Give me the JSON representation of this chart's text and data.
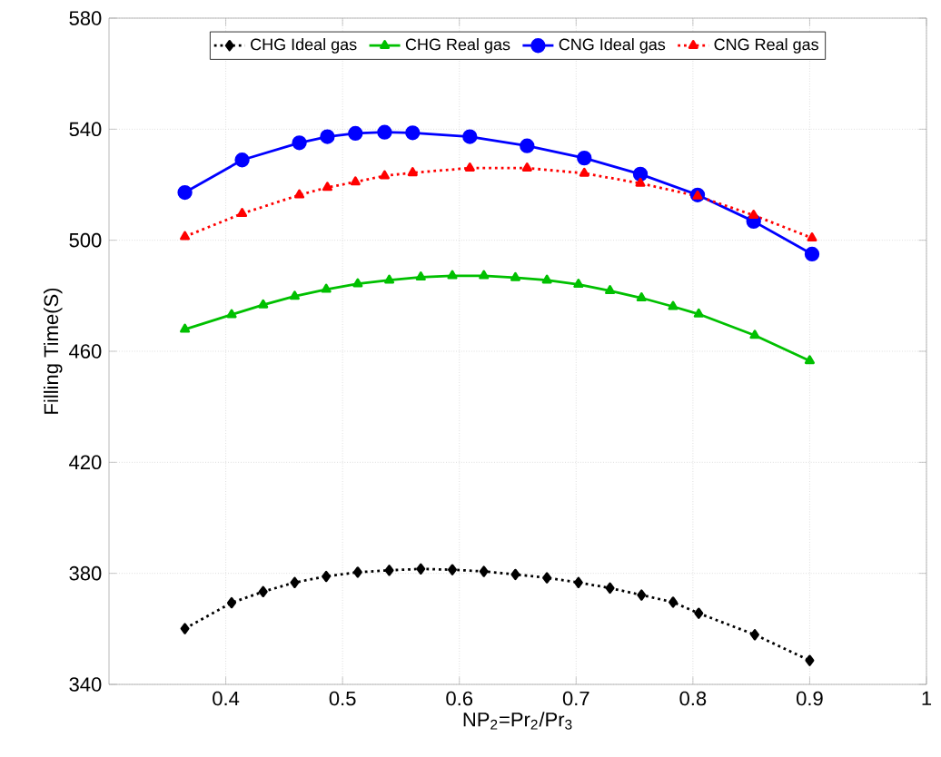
{
  "chart_data": {
    "type": "line",
    "xlabel": "NP$_{2}$=Pr$_{2}$/Pr$_{3}$",
    "ylabel": "Filling Time(S)",
    "xlim": [
      0.3,
      1
    ],
    "xticks": [
      0.4,
      0.5,
      0.6,
      0.7,
      0.8,
      0.9,
      1
    ],
    "ylim": [
      340,
      580
    ],
    "yticks": [
      340,
      380,
      420,
      460,
      500,
      540,
      580
    ],
    "grid": true,
    "legend": "top",
    "series": [
      {
        "name": "CHG Ideal gas",
        "color": "#000000",
        "marker": "diamond",
        "line_style": "dotted",
        "x": [
          0.365,
          0.405,
          0.432,
          0.459,
          0.486,
          0.513,
          0.54,
          0.567,
          0.594,
          0.621,
          0.648,
          0.675,
          0.702,
          0.729,
          0.756,
          0.783,
          0.805,
          0.853,
          0.9
        ],
        "values": [
          360.1,
          369.4,
          373.4,
          376.7,
          378.9,
          380.4,
          381.1,
          381.6,
          381.3,
          380.7,
          379.6,
          378.4,
          376.7,
          374.7,
          372.2,
          369.6,
          365.6,
          357.9,
          348.6
        ]
      },
      {
        "name": "CHG Real gas",
        "color": "#00c000",
        "marker": "triangle",
        "line_style": "solid",
        "x": [
          0.365,
          0.405,
          0.432,
          0.459,
          0.486,
          0.513,
          0.54,
          0.567,
          0.594,
          0.621,
          0.648,
          0.675,
          0.702,
          0.729,
          0.756,
          0.783,
          0.805,
          0.853,
          0.9
        ],
        "values": [
          467.9,
          473.2,
          476.7,
          479.8,
          482.3,
          484.3,
          485.6,
          486.7,
          487.2,
          487.2,
          486.5,
          485.6,
          484.1,
          481.8,
          479.2,
          476.1,
          473.4,
          465.7,
          456.6
        ]
      },
      {
        "name": "CNG Ideal gas",
        "color": "#0000ff",
        "marker": "circle",
        "line_style": "solid",
        "x": [
          0.365,
          0.414,
          0.463,
          0.487,
          0.511,
          0.536,
          0.56,
          0.609,
          0.658,
          0.707,
          0.755,
          0.804,
          0.852,
          0.902
        ],
        "values": [
          517.2,
          528.9,
          535.1,
          537.3,
          538.5,
          538.9,
          538.7,
          537.3,
          534,
          529.6,
          523.8,
          516.3,
          506.8,
          495
        ]
      },
      {
        "name": "CNG Real gas",
        "color": "#ff0000",
        "marker": "triangle",
        "line_style": "dotted",
        "x": [
          0.365,
          0.414,
          0.463,
          0.487,
          0.511,
          0.536,
          0.56,
          0.609,
          0.658,
          0.707,
          0.755,
          0.804,
          0.852,
          0.902
        ],
        "values": [
          501.3,
          509.6,
          516.3,
          519,
          521,
          523.2,
          524.3,
          526,
          526,
          524.1,
          520.5,
          515.9,
          509,
          500.8
        ]
      }
    ]
  }
}
